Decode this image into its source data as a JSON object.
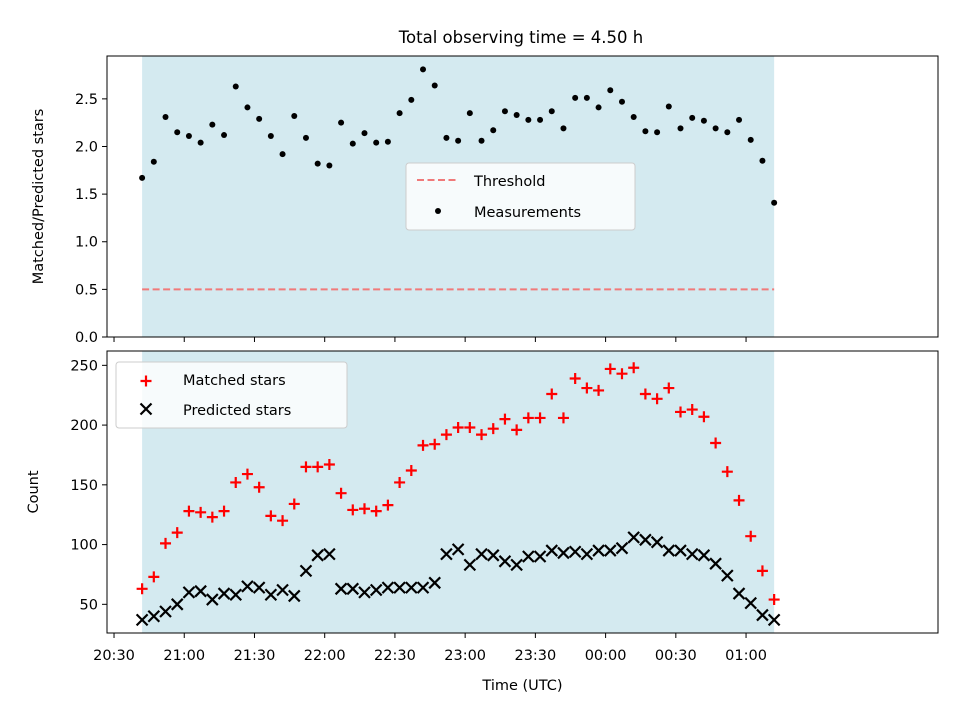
{
  "figure": {
    "title": "Total observing time = 4.50 h"
  },
  "colors": {
    "span": "#d4eaf0",
    "threshold": "#f07a7a",
    "measurement": "#000000",
    "matched": "#ff0000",
    "predicted": "#000000"
  },
  "chart_data": [
    {
      "type": "scatter",
      "x_unit": "minutes after 20:00 UTC",
      "ylabel": "Matched/Predicted stars",
      "xlabel": "",
      "ylim": [
        0,
        2.95
      ],
      "xlim": [
        27,
        382
      ],
      "yticks": [
        "0.0",
        "0.5",
        "1.0",
        "1.5",
        "2.0",
        "2.5"
      ],
      "ytick_values": [
        0,
        0.5,
        1.0,
        1.5,
        2.0,
        2.5
      ],
      "observing_span": [
        42,
        312
      ],
      "threshold": {
        "name": "Threshold",
        "value": 0.5
      },
      "legend": {
        "position": "center",
        "entries": [
          "Threshold",
          "Measurements"
        ]
      },
      "series": [
        {
          "name": "Measurements",
          "marker": "dot",
          "x": [
            42,
            47,
            52,
            57,
            62,
            67,
            72,
            77,
            82,
            87,
            92,
            97,
            102,
            107,
            112,
            117,
            122,
            127,
            132,
            137,
            142,
            147,
            152,
            157,
            162,
            167,
            172,
            177,
            182,
            187,
            192,
            197,
            202,
            207,
            212,
            217,
            222,
            227,
            232,
            237,
            242,
            247,
            252,
            257,
            262,
            267,
            272,
            277,
            282,
            287,
            292,
            297,
            302,
            307,
            312
          ],
          "values": [
            1.67,
            1.84,
            2.31,
            2.15,
            2.11,
            2.04,
            2.23,
            2.12,
            2.63,
            2.41,
            2.29,
            2.11,
            1.92,
            2.32,
            2.09,
            1.82,
            1.8,
            2.25,
            2.03,
            2.14,
            2.04,
            2.05,
            2.35,
            2.49,
            2.81,
            2.64,
            2.09,
            2.06,
            2.35,
            2.06,
            2.17,
            2.37,
            2.33,
            2.28,
            2.28,
            2.37,
            2.19,
            2.51,
            2.51,
            2.41,
            2.59,
            2.47,
            2.31,
            2.16,
            2.15,
            2.42,
            2.19,
            2.3,
            2.27,
            2.19,
            2.15,
            2.28,
            2.07,
            1.85,
            1.41
          ]
        }
      ]
    },
    {
      "type": "scatter",
      "x_unit": "minutes after 20:00 UTC",
      "ylabel": "Count",
      "xlabel": "Time (UTC)",
      "ylim": [
        26,
        262
      ],
      "xlim": [
        27,
        382
      ],
      "yticks": [
        "50",
        "100",
        "150",
        "200",
        "250"
      ],
      "ytick_values": [
        50,
        100,
        150,
        200,
        250
      ],
      "xticks": [
        "20:30",
        "21:00",
        "21:30",
        "22:00",
        "22:30",
        "23:00",
        "23:30",
        "00:00",
        "00:30",
        "01:00"
      ],
      "xtick_values": [
        30,
        60,
        90,
        120,
        150,
        180,
        210,
        240,
        270,
        300
      ],
      "observing_span": [
        42,
        312
      ],
      "legend": {
        "position": "upper left",
        "entries": [
          "Matched stars",
          "Predicted stars"
        ]
      },
      "series": [
        {
          "name": "Matched stars",
          "marker": "plus",
          "x": [
            42,
            47,
            52,
            57,
            62,
            67,
            72,
            77,
            82,
            87,
            92,
            97,
            102,
            107,
            112,
            117,
            122,
            127,
            132,
            137,
            142,
            147,
            152,
            157,
            162,
            167,
            172,
            177,
            182,
            187,
            192,
            197,
            202,
            207,
            212,
            217,
            222,
            227,
            232,
            237,
            242,
            247,
            252,
            257,
            262,
            267,
            272,
            277,
            282,
            287,
            292,
            297,
            302,
            307,
            312
          ],
          "values": [
            63,
            73,
            101,
            110,
            128,
            127,
            123,
            128,
            152,
            159,
            148,
            124,
            120,
            134,
            165,
            165,
            167,
            143,
            129,
            130,
            128,
            133,
            152,
            162,
            183,
            184,
            192,
            198,
            198,
            192,
            197,
            205,
            196,
            206,
            206,
            226,
            206,
            239,
            231,
            229,
            247,
            243,
            248,
            226,
            222,
            231,
            211,
            213,
            207,
            185,
            161,
            137,
            107,
            78,
            54
          ]
        },
        {
          "name": "Predicted stars",
          "marker": "cross",
          "x": [
            42,
            47,
            52,
            57,
            62,
            67,
            72,
            77,
            82,
            87,
            92,
            97,
            102,
            107,
            112,
            117,
            122,
            127,
            132,
            137,
            142,
            147,
            152,
            157,
            162,
            167,
            172,
            177,
            182,
            187,
            192,
            197,
            202,
            207,
            212,
            217,
            222,
            227,
            232,
            237,
            242,
            247,
            252,
            257,
            262,
            267,
            272,
            277,
            282,
            287,
            292,
            297,
            302,
            307,
            312
          ],
          "values": [
            37,
            40,
            44,
            50,
            60,
            61,
            54,
            59,
            58,
            65,
            64,
            58,
            62,
            57,
            78,
            91,
            92,
            63,
            63,
            60,
            62,
            64,
            64,
            64,
            64,
            68,
            92,
            96,
            83,
            92,
            91,
            86,
            83,
            90,
            90,
            95,
            93,
            94,
            92,
            95,
            95,
            97,
            106,
            104,
            102,
            95,
            95,
            92,
            91,
            84,
            74,
            59,
            51,
            41,
            37
          ]
        }
      ]
    }
  ]
}
